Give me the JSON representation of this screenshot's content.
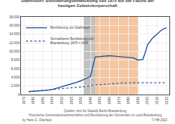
{
  "chart_data": {
    "type": "line",
    "title": "Stahnsdorf: Bevölkerungsentwicklung seit 1875 auf der Fläche der\nheutigen Gebietskorperschaft",
    "series": [
      {
        "name": "Bevölkerung von Stahnsdorf",
        "color": "#1f4e9c",
        "line_style": "solid",
        "x": [
          1875,
          1880,
          1885,
          1890,
          1895,
          1900,
          1905,
          1910,
          1915,
          1920,
          1925,
          1930,
          1935,
          1939,
          1940,
          1945,
          1950,
          1955,
          1960,
          1965,
          1970,
          1975,
          1980,
          1985,
          1990,
          1995,
          1998,
          2000,
          2005,
          2010,
          2015,
          2020
        ],
        "values": [
          700,
          750,
          800,
          900,
          1000,
          1200,
          1500,
          1900,
          2200,
          2400,
          2800,
          3200,
          3700,
          4000,
          4200,
          8700,
          8800,
          8900,
          9000,
          8900,
          8800,
          8700,
          8600,
          8500,
          8000,
          8100,
          10000,
          11500,
          13000,
          14000,
          15000,
          15500
        ]
      },
      {
        "name": "Normalisierte Bevölkerung von\nBrandenburg: 1875 = 1488",
        "color": "#1f4e9c",
        "line_style": "dotted",
        "x": [
          1875,
          1880,
          1885,
          1890,
          1895,
          1900,
          1905,
          1910,
          1915,
          1920,
          1925,
          1930,
          1935,
          1939,
          1940,
          1945,
          1950,
          1955,
          1960,
          1965,
          1970,
          1975,
          1980,
          1985,
          1990,
          1995,
          2000,
          2005,
          2010,
          2015,
          2020
        ],
        "values": [
          700,
          780,
          860,
          950,
          1050,
          1150,
          1270,
          1380,
          1450,
          1500,
          1600,
          1750,
          1900,
          2050,
          2100,
          2200,
          2300,
          2400,
          2500,
          2600,
          2650,
          2700,
          2720,
          2730,
          2750,
          2780,
          2800,
          2820,
          2800,
          2780,
          2750
        ]
      }
    ],
    "shaded_periods": [
      {
        "range": [
          1933,
          1945
        ],
        "color": "#c0c0c0"
      },
      {
        "range": [
          1945,
          1990
        ],
        "color": "#f5c6a0"
      }
    ],
    "annotations": [
      "by Hans G. Oberlack",
      "Quellen: Amt für Statistik Berlin-Brandenburg\nHistorische Gemeindeeinwohnerzahlen und Bevölkerung der Gemeinden im Land Brandenburg",
      "© HB 2022"
    ],
    "xlim": [
      1867,
      2023
    ],
    "xticks": [
      1870,
      1880,
      1890,
      1900,
      1910,
      1920,
      1930,
      1940,
      1950,
      1960,
      1970,
      1980,
      1990,
      2000,
      2010,
      2020
    ],
    "ylim": [
      0,
      18000
    ],
    "yticks": [
      0,
      {
        "value": 2000,
        "label": "2.000"
      },
      {
        "value": 4000,
        "label": "4.000"
      },
      {
        "value": 6000,
        "label": "6.000"
      },
      {
        "value": 8000,
        "label": "8.000"
      },
      {
        "value": 10000,
        "label": "10.000"
      },
      {
        "value": 12000,
        "label": "12.000"
      },
      {
        "value": 14000,
        "label": "14.000"
      },
      {
        "value": 16000,
        "label": "16.000"
      },
      {
        "value": 18000,
        "label": "18.000"
      }
    ],
    "grid": true,
    "legend": "upper left"
  }
}
